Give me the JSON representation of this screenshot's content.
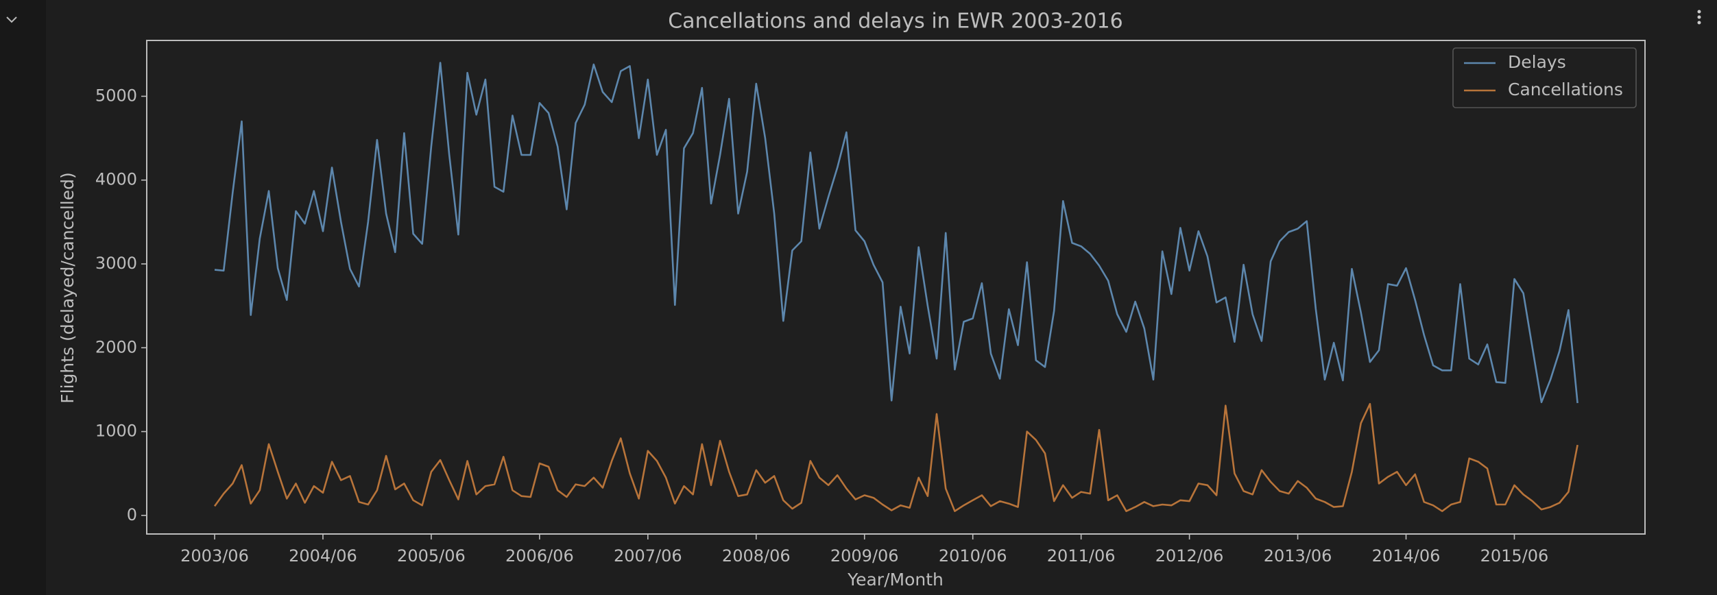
{
  "chart_data": {
    "type": "line",
    "title": "Cancellations and delays in EWR 2003-2016",
    "xlabel": "Year/Month",
    "ylabel": "Flights (delayed/cancelled)",
    "x": [
      "2003/06",
      "2003/07",
      "2003/08",
      "2003/09",
      "2003/10",
      "2003/11",
      "2003/12",
      "2004/01",
      "2004/02",
      "2004/03",
      "2004/04",
      "2004/05",
      "2004/06",
      "2004/07",
      "2004/08",
      "2004/09",
      "2004/10",
      "2004/11",
      "2004/12",
      "2005/01",
      "2005/02",
      "2005/03",
      "2005/04",
      "2005/05",
      "2005/06",
      "2005/07",
      "2005/08",
      "2005/09",
      "2005/10",
      "2005/11",
      "2005/12",
      "2006/01",
      "2006/02",
      "2006/03",
      "2006/04",
      "2006/05",
      "2006/06",
      "2006/07",
      "2006/08",
      "2006/09",
      "2006/10",
      "2006/11",
      "2006/12",
      "2007/01",
      "2007/02",
      "2007/03",
      "2007/04",
      "2007/05",
      "2007/06",
      "2007/07",
      "2007/08",
      "2007/09",
      "2007/10",
      "2007/11",
      "2007/12",
      "2008/01",
      "2008/02",
      "2008/03",
      "2008/04",
      "2008/05",
      "2008/06",
      "2008/07",
      "2008/08",
      "2008/09",
      "2008/10",
      "2008/11",
      "2008/12",
      "2009/01",
      "2009/02",
      "2009/03",
      "2009/04",
      "2009/05",
      "2009/06",
      "2009/07",
      "2009/08",
      "2009/09",
      "2009/10",
      "2009/11",
      "2009/12",
      "2010/01",
      "2010/02",
      "2010/03",
      "2010/04",
      "2010/05",
      "2010/06",
      "2010/07",
      "2010/08",
      "2010/09",
      "2010/10",
      "2010/11",
      "2010/12",
      "2011/01",
      "2011/02",
      "2011/03",
      "2011/04",
      "2011/05",
      "2011/06",
      "2011/07",
      "2011/08",
      "2011/09",
      "2011/10",
      "2011/11",
      "2011/12",
      "2012/01",
      "2012/02",
      "2012/03",
      "2012/04",
      "2012/05",
      "2012/06",
      "2012/07",
      "2012/08",
      "2012/09",
      "2012/10",
      "2012/11",
      "2012/12",
      "2013/01",
      "2013/02",
      "2013/03",
      "2013/04",
      "2013/05",
      "2013/06",
      "2013/07",
      "2013/08",
      "2013/09",
      "2013/10",
      "2013/11",
      "2013/12",
      "2014/01",
      "2014/02",
      "2014/03",
      "2014/04",
      "2014/05",
      "2014/06",
      "2014/07",
      "2014/08",
      "2014/09",
      "2014/10",
      "2014/11",
      "2014/12",
      "2015/01",
      "2015/02",
      "2015/03",
      "2015/04",
      "2015/05",
      "2015/06",
      "2015/07",
      "2015/08",
      "2015/09",
      "2015/10",
      "2015/11",
      "2015/12",
      "2016/01"
    ],
    "xticks": [
      "2003/06",
      "2004/06",
      "2005/06",
      "2006/06",
      "2007/06",
      "2008/06",
      "2009/06",
      "2010/06",
      "2011/06",
      "2012/06",
      "2013/06",
      "2014/06",
      "2015/06"
    ],
    "series": [
      {
        "name": "Delays",
        "color": "#5d87ad",
        "values": [
          2930,
          2920,
          3850,
          4700,
          2390,
          3300,
          3870,
          2950,
          2570,
          3630,
          3480,
          3870,
          3390,
          4150,
          3500,
          2940,
          2730,
          3500,
          4480,
          3600,
          3140,
          4560,
          3360,
          3240,
          4400,
          5400,
          4300,
          3350,
          5280,
          4780,
          5200,
          3920,
          3860,
          4770,
          4300,
          4300,
          4920,
          4800,
          4400,
          3650,
          4680,
          4900,
          5380,
          5050,
          4930,
          5300,
          5360,
          4500,
          5200,
          4300,
          4600,
          2510,
          4380,
          4560,
          5100,
          3720,
          4300,
          4970,
          3600,
          4100,
          5150,
          4500,
          3600,
          2320,
          3160,
          3270,
          4330,
          3420,
          3800,
          4150,
          4570,
          3400,
          3270,
          2990,
          2780,
          1370,
          2490,
          1930,
          3200,
          2500,
          1870,
          3370,
          1740,
          2310,
          2350,
          2770,
          1930,
          1630,
          2460,
          2030,
          3020,
          1850,
          1770,
          2440,
          3750,
          3250,
          3210,
          3120,
          2980,
          2800,
          2400,
          2190,
          2550,
          2230,
          1620,
          3150,
          2640,
          3430,
          2920,
          3390,
          3090,
          2540,
          2600,
          2070,
          2990,
          2400,
          2080,
          3030,
          3270,
          3380,
          3420,
          3510,
          2460,
          1620,
          2060,
          1610,
          2940,
          2420,
          1830,
          1970,
          2760,
          2740,
          2950,
          2570,
          2150,
          1790,
          1730,
          1730,
          2760,
          1870,
          1800,
          2040,
          1590,
          1580,
          2820,
          2650,
          2000,
          1350,
          1620,
          1960,
          2450,
          1340
        ]
      },
      {
        "name": "Cancellations",
        "color": "#b8743a",
        "values": [
          110,
          260,
          380,
          600,
          140,
          300,
          850,
          520,
          200,
          380,
          150,
          350,
          270,
          640,
          420,
          470,
          160,
          130,
          300,
          710,
          310,
          380,
          180,
          120,
          520,
          660,
          420,
          190,
          650,
          250,
          350,
          370,
          700,
          300,
          230,
          220,
          620,
          580,
          300,
          220,
          370,
          350,
          450,
          330,
          650,
          920,
          500,
          200,
          770,
          650,
          450,
          140,
          350,
          250,
          850,
          360,
          890,
          520,
          230,
          250,
          540,
          390,
          470,
          180,
          80,
          150,
          650,
          450,
          360,
          480,
          320,
          190,
          240,
          210,
          130,
          60,
          120,
          90,
          450,
          230,
          1210,
          320,
          50,
          120,
          180,
          240,
          110,
          170,
          140,
          100,
          1000,
          900,
          740,
          170,
          360,
          210,
          280,
          260,
          1020,
          180,
          240,
          50,
          100,
          160,
          110,
          130,
          120,
          180,
          170,
          380,
          360,
          240,
          1310,
          500,
          290,
          250,
          540,
          400,
          290,
          260,
          410,
          330,
          200,
          160,
          100,
          110,
          520,
          1100,
          1330,
          380,
          460,
          520,
          360,
          490,
          160,
          120,
          50,
          130,
          160,
          680,
          640,
          560,
          130,
          130,
          360,
          250,
          170,
          70,
          100,
          150,
          280,
          840
        ]
      }
    ],
    "ylim": [
      -222,
      5666
    ],
    "yticks": [
      0,
      1000,
      2000,
      3000,
      4000,
      5000
    ],
    "legend": "upper right"
  }
}
